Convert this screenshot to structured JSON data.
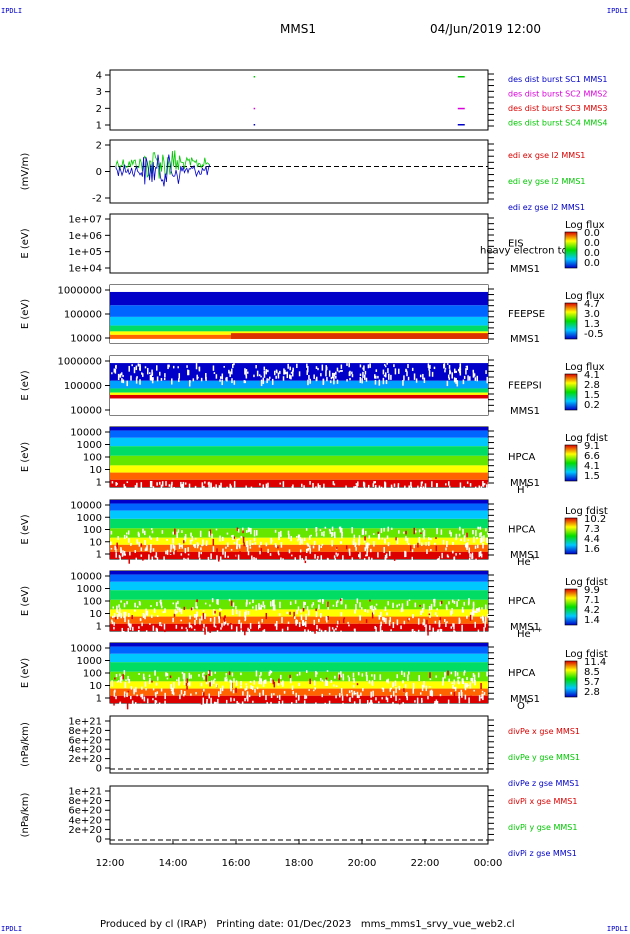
{
  "corner_mark": "IPDLI",
  "header": {
    "spacecraft": "MMS1",
    "datetime": "04/Jun/2019 12:00"
  },
  "footer": {
    "text": "Produced by cl (IRAP)   Printing date: 01/Dec/2023   mms_mms1_srvy_vue_web2.cl"
  },
  "colors": {
    "blue": "#0000c8",
    "red": "#dc0000",
    "green": "#00c800",
    "magenta": "#dc00dc"
  },
  "chart_data": {
    "type": "multi-panel",
    "x_axis": {
      "start": "12:00",
      "end": "00:00",
      "ticks": [
        "12:00",
        "14:00",
        "16:00",
        "18:00",
        "20:00",
        "22:00",
        "00:00"
      ]
    },
    "panels": [
      {
        "id": "burst",
        "type": "line",
        "yticks": [
          "4",
          "3",
          "2",
          "1"
        ],
        "ylabel": "",
        "legend": [
          {
            "label": "des dist burst SC1 MMS1",
            "color": "#0000c8"
          },
          {
            "label": "des dist burst SC2 MMS2",
            "color": "#dc00dc"
          },
          {
            "label": "des dist burst SC3 MMS3",
            "color": "#dc0000"
          },
          {
            "label": "des dist burst SC4 MMS4",
            "color": "#00c800"
          }
        ]
      },
      {
        "id": "edi",
        "type": "line",
        "ylabel": "(mV/m)",
        "yticks": [
          "2",
          "0",
          "-2"
        ],
        "legend": [
          {
            "label": "edi ex gse l2 MMS1",
            "color": "#dc0000"
          },
          {
            "label": "edi ey gse l2 MMS1",
            "color": "#00c800"
          },
          {
            "label": "edi ez gse l2 MMS1",
            "color": "#0000c8"
          }
        ]
      },
      {
        "id": "eis",
        "type": "heatmap",
        "ylabel": "E (eV)",
        "yticks": [
          "1e+07",
          "1e+06",
          "1e+05",
          "1e+04"
        ],
        "name": "EIS",
        "sub": "MMS1",
        "overlay_text": "heavy electron to",
        "cbar_title": "Log flux",
        "cbar_ticks": [
          "0.0",
          "0.0",
          "0.0",
          "0.0"
        ]
      },
      {
        "id": "feepse",
        "type": "heatmap",
        "ylabel": "E (eV)",
        "yticks": [
          "1000000",
          "100000",
          "10000"
        ],
        "name": "FEEPSE",
        "sub": "MMS1",
        "cbar_title": "Log flux",
        "cbar_ticks": [
          "4.7",
          "3.0",
          "1.3",
          "-0.5"
        ]
      },
      {
        "id": "feepsi",
        "type": "heatmap",
        "ylabel": "E (eV)",
        "yticks": [
          "1000000",
          "100000",
          "10000"
        ],
        "name": "FEEPSI",
        "sub": "MMS1",
        "cbar_title": "Log flux",
        "cbar_ticks": [
          "4.1",
          "2.8",
          "1.5",
          "0.2"
        ]
      },
      {
        "id": "hpca_h",
        "type": "heatmap",
        "ylabel": "E (eV)",
        "yticks": [
          "10000",
          "1000",
          "100",
          "10",
          "1"
        ],
        "name": "HPCA",
        "sub": "MMS1",
        "species": "H",
        "charge": "+",
        "cbar_title": "Log fdist",
        "cbar_ticks": [
          "9.1",
          "6.6",
          "4.1",
          "1.5"
        ]
      },
      {
        "id": "hpca_he",
        "type": "heatmap",
        "ylabel": "E (eV)",
        "yticks": [
          "10000",
          "1000",
          "100",
          "10",
          "1"
        ],
        "name": "HPCA",
        "sub": "MMS1",
        "species": "He",
        "charge": "+",
        "cbar_title": "Log fdist",
        "cbar_ticks": [
          "10.2",
          "7.3",
          "4.4",
          "1.6"
        ]
      },
      {
        "id": "hpca_hepp",
        "type": "heatmap",
        "ylabel": "E (eV)",
        "yticks": [
          "10000",
          "1000",
          "100",
          "10",
          "1"
        ],
        "name": "HPCA",
        "sub": "MMS1",
        "species": "He",
        "charge": "++",
        "cbar_title": "Log fdist",
        "cbar_ticks": [
          "9.9",
          "7.1",
          "4.2",
          "1.4"
        ]
      },
      {
        "id": "hpca_o",
        "type": "heatmap",
        "ylabel": "E (eV)",
        "yticks": [
          "10000",
          "1000",
          "100",
          "10",
          "1"
        ],
        "name": "HPCA",
        "sub": "MMS1",
        "species": "O",
        "charge": "+",
        "cbar_title": "Log fdist",
        "cbar_ticks": [
          "11.4",
          "8.5",
          "5.7",
          "2.8"
        ]
      },
      {
        "id": "divpe",
        "type": "line",
        "ylabel": "(nPa/km)",
        "yticks": [
          "1e+21",
          "8e+20",
          "6e+20",
          "4e+20",
          "2e+20",
          "0"
        ],
        "legend": [
          {
            "label": "divPe x gse MMS1",
            "color": "#dc0000"
          },
          {
            "label": "divPe y gse MMS1",
            "color": "#00c800"
          },
          {
            "label": "divPe z gse MMS1",
            "color": "#0000c8"
          }
        ]
      },
      {
        "id": "divpi",
        "type": "line",
        "ylabel": "(nPa/km)",
        "yticks": [
          "1e+21",
          "8e+20",
          "6e+20",
          "4e+20",
          "2e+20",
          "0"
        ],
        "legend": [
          {
            "label": "divPi x gse MMS1",
            "color": "#dc0000"
          },
          {
            "label": "divPi y gse MMS1",
            "color": "#00c800"
          },
          {
            "label": "divPi z gse MMS1",
            "color": "#0000c8"
          }
        ]
      }
    ]
  }
}
